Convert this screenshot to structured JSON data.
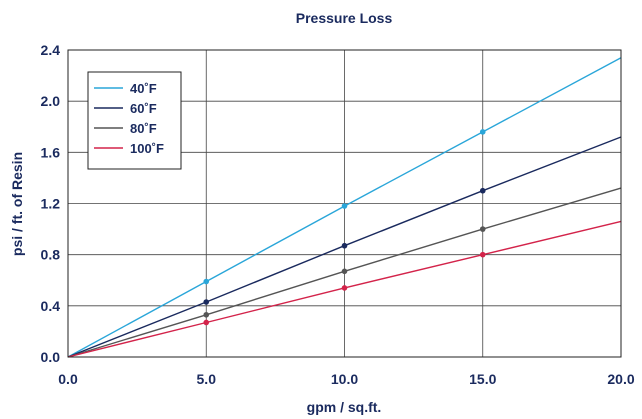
{
  "chart_data": {
    "type": "line",
    "title": "Pressure Loss",
    "xlabel": "gpm / sq.ft.",
    "ylabel": "psi / ft. of Resin",
    "xlim": [
      0,
      20
    ],
    "ylim": [
      0,
      2.4
    ],
    "x_ticks": [
      "0.0",
      "5.0",
      "10.0",
      "15.0",
      "20.0"
    ],
    "y_ticks": [
      "0.0",
      "0.4",
      "0.8",
      "1.2",
      "1.6",
      "2.0",
      "2.4"
    ],
    "grid": true,
    "legend_position": "top-left",
    "series": [
      {
        "name": "40˚F",
        "color": "#2aa6d9",
        "x": [
          0,
          5,
          10,
          15,
          20
        ],
        "y": [
          0,
          0.59,
          1.18,
          1.76,
          2.34
        ]
      },
      {
        "name": "60˚F",
        "color": "#1a2a5e",
        "x": [
          0,
          5,
          10,
          15,
          20
        ],
        "y": [
          0,
          0.43,
          0.87,
          1.3,
          1.72
        ]
      },
      {
        "name": "80˚F",
        "color": "#555555",
        "x": [
          0,
          5,
          10,
          15,
          20
        ],
        "y": [
          0,
          0.33,
          0.67,
          1.0,
          1.32
        ]
      },
      {
        "name": "100˚F",
        "color": "#d3234a",
        "x": [
          0,
          5,
          10,
          15,
          20
        ],
        "y": [
          0,
          0.27,
          0.54,
          0.8,
          1.06
        ]
      }
    ]
  }
}
